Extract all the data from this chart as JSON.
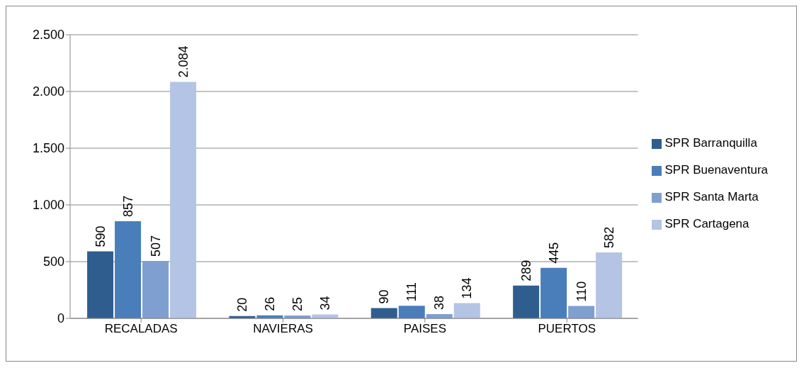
{
  "chart_data": {
    "type": "bar",
    "categories": [
      "RECALADAS",
      "NAVIERAS",
      "PAISES",
      "PUERTOS"
    ],
    "series": [
      {
        "name": "SPR Barranquilla",
        "color": "#2f5e8e",
        "values": [
          590,
          20,
          90,
          289
        ],
        "value_labels": [
          "590",
          "20",
          "90",
          "289"
        ]
      },
      {
        "name": "SPR Buenaventura",
        "color": "#4a7ebb",
        "values": [
          857,
          26,
          111,
          445
        ],
        "value_labels": [
          "857",
          "26",
          "111",
          "445"
        ]
      },
      {
        "name": "SPR Santa Marta",
        "color": "#7f9fd0",
        "values": [
          507,
          25,
          38,
          110
        ],
        "value_labels": [
          "507",
          "25",
          "38",
          "110"
        ]
      },
      {
        "name": "SPR Cartagena",
        "color": "#b4c4e4",
        "values": [
          2084,
          34,
          134,
          582
        ],
        "value_labels": [
          "2.084",
          "34",
          "134",
          "582"
        ]
      }
    ],
    "ylim": [
      0,
      2500
    ],
    "yticks": [
      {
        "value": 0,
        "label": "0"
      },
      {
        "value": 500,
        "label": "500"
      },
      {
        "value": 1000,
        "label": "1.000"
      },
      {
        "value": 1500,
        "label": "1.500"
      },
      {
        "value": 2000,
        "label": "2.000"
      },
      {
        "value": 2500,
        "label": "2.500"
      }
    ],
    "grid": "y",
    "legend": "right"
  }
}
